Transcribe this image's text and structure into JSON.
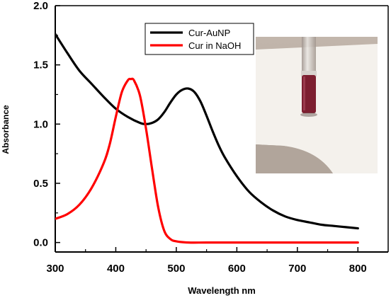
{
  "chart_data": {
    "type": "line",
    "xlabel": "Wavelength nm",
    "ylabel": "Absorbance",
    "xlim": [
      300,
      850
    ],
    "ylim": [
      -0.08,
      2.0
    ],
    "xticks": [
      300,
      400,
      500,
      600,
      700,
      800
    ],
    "yticks": [
      0.0,
      0.5,
      1.0,
      1.5,
      2.0
    ],
    "xtick_labels": [
      "300",
      "400",
      "500",
      "600",
      "700",
      "800"
    ],
    "ytick_labels": [
      "0.0",
      "0.5",
      "1.0",
      "1.5",
      "2.0"
    ],
    "legend_position": "top-right",
    "inset": {
      "type": "photo",
      "content": "vial containing dark red Cur-AuNP solution"
    },
    "series": [
      {
        "name": "Cur-AuNP",
        "color": "#000000",
        "x": [
          300,
          320,
          340,
          360,
          380,
          400,
          420,
          440,
          450,
          460,
          470,
          480,
          490,
          500,
          510,
          520,
          530,
          540,
          550,
          560,
          570,
          580,
          600,
          620,
          640,
          660,
          680,
          700,
          720,
          740,
          760,
          780,
          800
        ],
        "y": [
          1.76,
          1.6,
          1.45,
          1.34,
          1.23,
          1.13,
          1.06,
          1.01,
          1.0,
          1.01,
          1.04,
          1.1,
          1.18,
          1.25,
          1.29,
          1.3,
          1.27,
          1.19,
          1.07,
          0.94,
          0.82,
          0.72,
          0.56,
          0.43,
          0.34,
          0.27,
          0.22,
          0.19,
          0.17,
          0.15,
          0.14,
          0.13,
          0.12
        ]
      },
      {
        "name": "Cur in NaOH",
        "color": "#ff0000",
        "x": [
          300,
          320,
          340,
          360,
          380,
          390,
          400,
          410,
          420,
          425,
          430,
          440,
          450,
          460,
          470,
          480,
          490,
          500,
          520,
          550,
          600,
          700,
          800
        ],
        "y": [
          0.2,
          0.24,
          0.32,
          0.46,
          0.67,
          0.83,
          1.06,
          1.27,
          1.37,
          1.38,
          1.37,
          1.24,
          0.96,
          0.62,
          0.3,
          0.1,
          0.03,
          0.01,
          0.0,
          0.0,
          0.0,
          0.0,
          0.0
        ]
      }
    ]
  },
  "colors": {
    "photo_wall": "#b7aba1",
    "photo_bench": "#f4f1ec",
    "solution": "#7d1f30"
  }
}
